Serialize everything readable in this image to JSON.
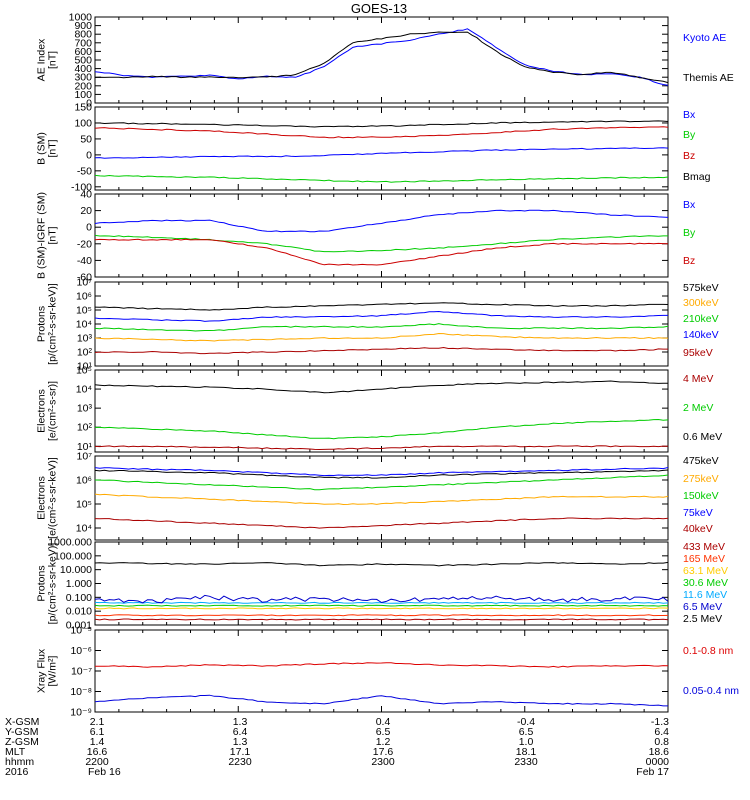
{
  "title": "GOES-13",
  "footer": {
    "labels": [
      "X-GSM",
      "Y-GSM",
      "Z-GSM",
      "MLT",
      "hhmm",
      "2016"
    ],
    "columns": [
      [
        "2.1",
        "6.1",
        "1.4",
        "16.6",
        "2200",
        "Feb 16"
      ],
      [
        "1.3",
        "6.4",
        "1.3",
        "17.1",
        "2230",
        ""
      ],
      [
        "0.4",
        "6.5",
        "1.2",
        "17.6",
        "2300",
        ""
      ],
      [
        "-0.4",
        "6.5",
        "1.0",
        "18.1",
        "2330",
        ""
      ],
      [
        "-1.3",
        "6.4",
        "0.8",
        "18.6",
        "0000",
        "Feb 17"
      ]
    ]
  },
  "chart_data": [
    {
      "type": "line",
      "ylabel": "AE Index\n[nT]",
      "scale": "linear",
      "ylim": [
        0,
        1000
      ],
      "yticks": [
        "0",
        "100",
        "200",
        "300",
        "400",
        "500",
        "600",
        "700",
        "800",
        "900",
        "1000"
      ],
      "x": [
        0,
        0.05,
        0.1,
        0.15,
        0.2,
        0.25,
        0.3,
        0.35,
        0.4,
        0.45,
        0.5,
        0.55,
        0.6,
        0.65,
        0.7,
        0.75,
        0.8,
        0.85,
        0.9,
        0.95,
        1
      ],
      "series": [
        {
          "name": "Kyoto AE",
          "color": "#0000ff",
          "values": [
            370,
            320,
            300,
            310,
            320,
            280,
            310,
            300,
            420,
            650,
            690,
            730,
            800,
            860,
            650,
            440,
            370,
            330,
            340,
            300,
            200
          ]
        },
        {
          "name": "Themis AE",
          "color": "#000000",
          "values": [
            300,
            300,
            310,
            300,
            300,
            300,
            300,
            330,
            460,
            700,
            750,
            800,
            820,
            830,
            600,
            420,
            360,
            330,
            360,
            300,
            240
          ]
        }
      ]
    },
    {
      "type": "line",
      "ylabel": "B (SM)\n[nT]",
      "scale": "linear",
      "ylim": [
        -110,
        150
      ],
      "yticks": [
        "-100",
        "-50",
        "0",
        "50",
        "100",
        "150"
      ],
      "x": [
        0,
        0.1,
        0.2,
        0.3,
        0.4,
        0.5,
        0.6,
        0.7,
        0.8,
        0.9,
        1
      ],
      "series": [
        {
          "name": "Bx",
          "color": "#0000ff",
          "values": [
            -10,
            -8,
            -5,
            -5,
            -2,
            5,
            10,
            15,
            18,
            20,
            22
          ]
        },
        {
          "name": "By",
          "color": "#00cc00",
          "values": [
            -65,
            -68,
            -70,
            -75,
            -80,
            -85,
            -82,
            -78,
            -75,
            -72,
            -70
          ]
        },
        {
          "name": "Bz",
          "color": "#cc0000",
          "values": [
            85,
            80,
            75,
            65,
            55,
            55,
            60,
            70,
            80,
            85,
            88
          ]
        },
        {
          "name": "Bmag",
          "color": "#000000",
          "values": [
            100,
            98,
            95,
            92,
            88,
            90,
            95,
            100,
            103,
            105,
            105
          ]
        }
      ]
    },
    {
      "type": "line",
      "ylabel": "B (SM)-IGRF (SM)\n[nT]",
      "scale": "linear",
      "ylim": [
        -60,
        40
      ],
      "yticks": [
        "-60",
        "-40",
        "-20",
        "0",
        "20",
        "40"
      ],
      "x": [
        0,
        0.1,
        0.2,
        0.3,
        0.4,
        0.5,
        0.6,
        0.7,
        0.8,
        0.9,
        1
      ],
      "series": [
        {
          "name": "Bx",
          "color": "#0000ff",
          "values": [
            5,
            8,
            8,
            -5,
            -5,
            5,
            15,
            20,
            20,
            15,
            12
          ]
        },
        {
          "name": "By",
          "color": "#00cc00",
          "values": [
            -10,
            -12,
            -15,
            -20,
            -30,
            -28,
            -25,
            -20,
            -15,
            -12,
            -10
          ]
        },
        {
          "name": "Bz",
          "color": "#cc0000",
          "values": [
            -15,
            -15,
            -15,
            -25,
            -45,
            -45,
            -35,
            -25,
            -20,
            -20,
            -20
          ]
        }
      ]
    },
    {
      "type": "line",
      "ylabel": "Protons\n[p/(cm²-s-sr-keV)]",
      "scale": "log",
      "ylim": [
        1,
        7
      ],
      "yticks": [
        "10¹",
        "10²",
        "10³",
        "10⁴",
        "10⁵",
        "10⁶",
        "10⁷"
      ],
      "x": [
        0,
        0.1,
        0.2,
        0.3,
        0.4,
        0.5,
        0.6,
        0.7,
        0.8,
        0.9,
        1
      ],
      "series": [
        {
          "name": "575keV",
          "color": "#000000",
          "values": [
            5.2,
            5.1,
            5.0,
            5.2,
            5.3,
            5.4,
            5.5,
            5.4,
            5.3,
            5.3,
            5.4
          ]
        },
        {
          "name": "300keV",
          "color": "#ffaa00",
          "values": [
            3.0,
            2.9,
            2.8,
            2.9,
            3.0,
            3.0,
            3.3,
            3.1,
            3.0,
            3.0,
            3.0
          ]
        },
        {
          "name": "210keV",
          "color": "#00cc00",
          "values": [
            3.7,
            3.6,
            3.5,
            3.8,
            3.8,
            3.8,
            4.0,
            3.7,
            3.7,
            3.7,
            3.8
          ]
        },
        {
          "name": "140keV",
          "color": "#0000ff",
          "values": [
            4.4,
            4.3,
            4.2,
            4.5,
            4.5,
            4.6,
            4.9,
            4.6,
            4.5,
            4.5,
            4.6
          ]
        },
        {
          "name": "95keV",
          "color": "#aa0000",
          "values": [
            2.0,
            2.0,
            1.9,
            2.0,
            2.1,
            2.2,
            2.3,
            2.2,
            2.1,
            2.1,
            2.2
          ]
        }
      ]
    },
    {
      "type": "line",
      "ylabel": "Electrons\n[e/(cm²-s-sr)]",
      "scale": "log",
      "ylim": [
        0.7,
        5
      ],
      "yticks": [
        "10¹",
        "10²",
        "10³",
        "10⁴",
        "10⁵"
      ],
      "x": [
        0,
        0.1,
        0.2,
        0.3,
        0.4,
        0.5,
        0.6,
        0.7,
        0.8,
        0.9,
        1
      ],
      "series": [
        {
          "name": "4 MeV",
          "color": "#aa0000",
          "values": [
            1.0,
            1.0,
            0.95,
            0.9,
            0.85,
            0.9,
            1.0,
            1.0,
            1.0,
            1.0,
            1.0
          ]
        },
        {
          "name": "2 MeV",
          "color": "#00cc00",
          "values": [
            2.0,
            1.9,
            1.8,
            1.6,
            1.4,
            1.5,
            1.7,
            2.0,
            2.2,
            2.3,
            2.4
          ]
        },
        {
          "name": "0.6 MeV",
          "color": "#000000",
          "values": [
            4.2,
            4.15,
            4.1,
            4.0,
            3.8,
            4.0,
            4.2,
            4.3,
            4.35,
            4.4,
            4.3
          ]
        }
      ]
    },
    {
      "type": "line",
      "ylabel": "Electrons\n[e/(cm²-s-sr-keV)]",
      "scale": "log",
      "ylim": [
        3.5,
        7
      ],
      "yticks": [
        "10⁴",
        "10⁵",
        "10⁶",
        "10⁷"
      ],
      "x": [
        0,
        0.1,
        0.2,
        0.3,
        0.4,
        0.5,
        0.6,
        0.7,
        0.8,
        0.9,
        1
      ],
      "series": [
        {
          "name": "475keV",
          "color": "#000000",
          "values": [
            6.4,
            6.35,
            6.3,
            6.2,
            6.1,
            6.1,
            6.2,
            6.25,
            6.3,
            6.35,
            6.4
          ]
        },
        {
          "name": "275keV",
          "color": "#ffaa00",
          "values": [
            5.4,
            5.3,
            5.2,
            5.1,
            5.0,
            5.0,
            5.1,
            5.2,
            5.3,
            5.3,
            5.3
          ]
        },
        {
          "name": "150keV",
          "color": "#00cc00",
          "values": [
            6.0,
            5.9,
            5.8,
            5.7,
            5.6,
            5.7,
            5.8,
            5.9,
            6.0,
            6.1,
            6.2
          ]
        },
        {
          "name": "75keV",
          "color": "#0000ff",
          "values": [
            6.5,
            6.45,
            6.4,
            6.3,
            6.2,
            6.2,
            6.3,
            6.35,
            6.4,
            6.45,
            6.5
          ]
        },
        {
          "name": "40keV",
          "color": "#aa0000",
          "values": [
            4.4,
            4.3,
            4.2,
            4.1,
            4.0,
            4.1,
            4.2,
            4.3,
            4.4,
            4.4,
            4.4
          ]
        }
      ]
    },
    {
      "type": "line",
      "ylabel": "Protons\n[p/(cm²-s-sr-keV)]",
      "scale": "log",
      "ylim": [
        -3,
        3
      ],
      "yticks": [
        "0.001",
        "0.010",
        "0.100",
        "1.000",
        "10.000",
        "100.000",
        "1000.000"
      ],
      "x": [
        0,
        0.1,
        0.2,
        0.3,
        0.4,
        0.5,
        0.6,
        0.7,
        0.8,
        0.9,
        1
      ],
      "series": [
        {
          "name": "433 MeV",
          "color": "#aa0000",
          "values": [
            -2.6,
            -2.6,
            -2.6,
            -2.6,
            -2.6,
            -2.6,
            -2.6,
            -2.6,
            -2.6,
            -2.6,
            -2.6
          ]
        },
        {
          "name": "165 MeV",
          "color": "#ff3300",
          "values": [
            -2.3,
            -2.3,
            -2.3,
            -2.3,
            -2.3,
            -2.3,
            -2.3,
            -2.3,
            -2.3,
            -2.3,
            -2.3
          ]
        },
        {
          "name": "63.1 MeV",
          "color": "#ffcc00",
          "values": [
            -1.8,
            -1.8,
            -1.8,
            -1.8,
            -1.8,
            -1.8,
            -1.8,
            -1.8,
            -1.8,
            -1.8,
            -1.8
          ]
        },
        {
          "name": "30.6 MeV",
          "color": "#00cc00",
          "values": [
            -1.6,
            -1.6,
            -1.6,
            -1.6,
            -1.6,
            -1.6,
            -1.6,
            -1.6,
            -1.6,
            -1.6,
            -1.6
          ]
        },
        {
          "name": "11.6 MeV",
          "color": "#00aaff",
          "values": [
            -1.4,
            -1.4,
            -1.4,
            -1.4,
            -1.4,
            -1.4,
            -1.4,
            -1.4,
            -1.4,
            -1.4,
            -1.4
          ]
        },
        {
          "name": "6.5 MeV",
          "color": "#0000cc",
          "values": [
            -1.2,
            -1.3,
            -1.0,
            -1.2,
            -1.1,
            -1.3,
            -1.1,
            -1.0,
            -1.2,
            -1.1,
            -1.2
          ]
        },
        {
          "name": "2.5 MeV",
          "color": "#000000",
          "values": [
            1.5,
            1.45,
            1.4,
            1.5,
            1.3,
            1.4,
            1.3,
            1.4,
            1.5,
            1.4,
            1.5
          ]
        }
      ]
    },
    {
      "type": "line",
      "ylabel": "Xray Flux\n[W/m²]",
      "scale": "log",
      "ylim": [
        -9,
        -5
      ],
      "yticks": [
        "10⁻⁹",
        "10⁻⁸",
        "10⁻⁷",
        "10⁻⁶",
        "10⁻⁵"
      ],
      "x": [
        0,
        0.1,
        0.2,
        0.3,
        0.4,
        0.5,
        0.6,
        0.7,
        0.8,
        0.9,
        1
      ],
      "series": [
        {
          "name": "0.1-0.8 nm",
          "color": "#dd0000",
          "values": [
            -6.75,
            -6.8,
            -6.7,
            -6.75,
            -6.65,
            -6.6,
            -6.7,
            -6.75,
            -6.8,
            -6.75,
            -6.75
          ]
        },
        {
          "name": "0.05-0.4 nm",
          "color": "#0000dd",
          "values": [
            -8.5,
            -8.3,
            -8.2,
            -8.5,
            -8.6,
            -8.2,
            -8.6,
            -8.5,
            -8.6,
            -8.6,
            -8.7
          ]
        }
      ]
    }
  ]
}
